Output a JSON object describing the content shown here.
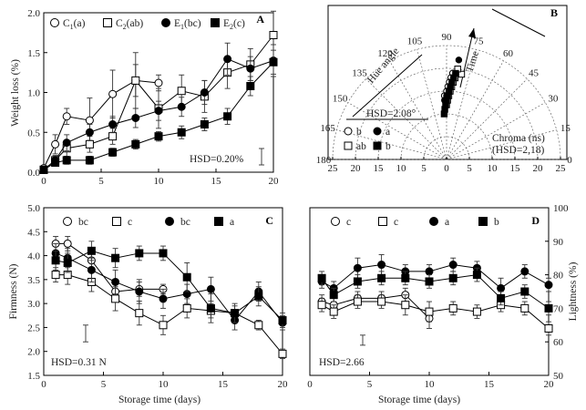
{
  "colors": {
    "axis": "#000000",
    "open": "#ffffff",
    "filled": "#000000"
  },
  "chart_data": [
    {
      "id": "A",
      "type": "line",
      "panel_label": "A",
      "ylabel": "Weight loss (%)",
      "xlabel": "",
      "xlim": [
        0,
        20
      ],
      "ylim": [
        0,
        2.0
      ],
      "xticks": [
        "0",
        "5",
        "10",
        "15",
        "20"
      ],
      "yticks": [
        "0.0",
        "0.5",
        "1.0",
        "1.5",
        "2.0"
      ],
      "annotation": "HSD=0.20%",
      "series": [
        {
          "name": "C",
          "sub": "1",
          "suffix": "(a)",
          "marker": "circle",
          "fill": "open",
          "x": [
            0,
            1,
            2,
            4,
            6,
            8,
            10
          ],
          "y": [
            0.05,
            0.35,
            0.7,
            0.65,
            0.98,
            1.15,
            1.12
          ],
          "err": [
            0.02,
            0.12,
            0.1,
            0.28,
            0.3,
            0.2,
            0.1
          ]
        },
        {
          "name": "C",
          "sub": "2",
          "suffix": "(ab)",
          "marker": "square",
          "fill": "open",
          "x": [
            0,
            1,
            2,
            4,
            6,
            8,
            10,
            12,
            14,
            16,
            18,
            20
          ],
          "y": [
            0.03,
            0.15,
            0.3,
            0.35,
            0.45,
            1.15,
            0.8,
            1.02,
            0.95,
            1.25,
            1.35,
            1.72
          ],
          "err": [
            0.02,
            0.06,
            0.1,
            0.1,
            0.1,
            0.35,
            0.25,
            0.2,
            0.2,
            0.2,
            0.2,
            0.3
          ]
        },
        {
          "name": "E",
          "sub": "1",
          "suffix": "(bc)",
          "marker": "circle",
          "fill": "filled",
          "x": [
            0,
            1,
            2,
            4,
            6,
            8,
            10,
            12,
            14,
            16,
            18,
            20
          ],
          "y": [
            0.03,
            0.15,
            0.37,
            0.5,
            0.6,
            0.68,
            0.77,
            0.82,
            1.0,
            1.42,
            1.3,
            1.4
          ],
          "err": [
            0.02,
            0.05,
            0.1,
            0.1,
            0.1,
            0.12,
            0.12,
            0.12,
            0.15,
            0.2,
            0.15,
            0.2
          ]
        },
        {
          "name": "E",
          "sub": "2",
          "suffix": "(c)",
          "marker": "square",
          "fill": "filled",
          "x": [
            0,
            1,
            2,
            4,
            6,
            8,
            10,
            12,
            14,
            16,
            18,
            20
          ],
          "y": [
            0.03,
            0.12,
            0.15,
            0.15,
            0.25,
            0.35,
            0.45,
            0.5,
            0.6,
            0.7,
            1.08,
            1.38
          ],
          "err": [
            0.02,
            0.03,
            0.05,
            0.05,
            0.05,
            0.06,
            0.06,
            0.08,
            0.08,
            0.1,
            0.12,
            0.15
          ]
        }
      ]
    },
    {
      "id": "B",
      "type": "polar-scatter",
      "panel_label": "B",
      "angle_ticks": [
        "180",
        "165",
        "150",
        "135",
        "120",
        "105",
        "90",
        "75",
        "60",
        "45",
        "30",
        "15",
        "0"
      ],
      "radial_ticks": [
        "25",
        "20",
        "15",
        "10",
        "5",
        "0",
        "5",
        "10",
        "15",
        "20",
        "25"
      ],
      "rmax": 25,
      "hue_label": "Hue angle",
      "time_label": "Time",
      "chroma_label": "Chroma (ns)",
      "chroma_hsd": "(HSD=2,18)",
      "hue_hsd": "HSD=2.08°",
      "legend": [
        {
          "marker": "circle",
          "fill": "open",
          "label": "b"
        },
        {
          "marker": "circle",
          "fill": "filled",
          "label": "a"
        },
        {
          "marker": "square",
          "fill": "open",
          "label": "ab"
        },
        {
          "marker": "square",
          "fill": "filled",
          "label": "b"
        }
      ],
      "points": [
        {
          "marker": "circle",
          "fill": "open",
          "hue": [
            92,
            90,
            89,
            88,
            87,
            86,
            85
          ],
          "chroma": [
            14,
            15,
            16,
            17,
            18,
            19,
            17
          ]
        },
        {
          "marker": "circle",
          "fill": "filled",
          "hue": [
            92,
            90,
            88,
            87,
            86,
            85,
            84,
            83
          ],
          "chroma": [
            13,
            14,
            15,
            16,
            17,
            18,
            19,
            22
          ]
        },
        {
          "marker": "square",
          "fill": "open",
          "hue": [
            90,
            89,
            88,
            87,
            86,
            85,
            84,
            80,
            83
          ],
          "chroma": [
            12,
            13,
            14,
            15,
            16,
            17,
            18,
            19,
            20
          ]
        },
        {
          "marker": "square",
          "fill": "filled",
          "hue": [
            93,
            92,
            91,
            90,
            89,
            88,
            87,
            86,
            85,
            84
          ],
          "chroma": [
            10,
            11,
            12,
            13,
            14,
            15,
            16,
            17,
            18,
            19
          ]
        }
      ]
    },
    {
      "id": "C",
      "type": "line",
      "panel_label": "C",
      "ylabel": "Firmness (N)",
      "xlabel": "Storage time (days)",
      "xlim": [
        0,
        20
      ],
      "ylim": [
        1.5,
        5.0
      ],
      "xticks": [
        "0",
        "5",
        "10",
        "15",
        "20"
      ],
      "yticks": [
        "1.5",
        "2.0",
        "2.5",
        "3.0",
        "3.5",
        "4.0",
        "4.5",
        "5.0"
      ],
      "annotation": "HSD=0.31 N",
      "legend": [
        "bc",
        "c",
        "bc",
        "a"
      ],
      "series": [
        {
          "marker": "circle",
          "fill": "open",
          "x": [
            1,
            2,
            4,
            6,
            8,
            10
          ],
          "y": [
            4.25,
            4.25,
            3.9,
            3.25,
            3.3,
            3.3
          ],
          "err": [
            0.15,
            0.15,
            0.2,
            0.2,
            0.15,
            0.1
          ]
        },
        {
          "marker": "square",
          "fill": "open",
          "x": [
            1,
            2,
            4,
            6,
            8,
            10,
            12,
            14,
            16,
            18,
            20
          ],
          "y": [
            3.6,
            3.6,
            3.45,
            3.1,
            2.8,
            2.55,
            2.9,
            2.85,
            2.8,
            2.55,
            1.95
          ],
          "err": [
            0.15,
            0.2,
            0.2,
            0.25,
            0.25,
            0.2,
            0.2,
            0.15,
            0.15,
            0.1,
            0.1
          ]
        },
        {
          "marker": "circle",
          "fill": "filled",
          "x": [
            1,
            2,
            4,
            6,
            8,
            10,
            12,
            14,
            16,
            18,
            20
          ],
          "y": [
            4.05,
            3.95,
            3.7,
            3.45,
            3.25,
            3.1,
            3.2,
            3.3,
            2.65,
            3.25,
            2.6
          ],
          "err": [
            0.2,
            0.2,
            0.25,
            0.25,
            0.25,
            0.2,
            0.2,
            0.25,
            0.2,
            0.2,
            0.15
          ]
        },
        {
          "marker": "square",
          "fill": "filled",
          "x": [
            1,
            2,
            4,
            6,
            8,
            10,
            12,
            14,
            16,
            18,
            20
          ],
          "y": [
            3.9,
            3.85,
            4.1,
            3.95,
            4.05,
            4.05,
            3.55,
            2.9,
            2.8,
            3.15,
            2.65
          ],
          "err": [
            0.2,
            0.2,
            0.2,
            0.2,
            0.15,
            0.15,
            0.3,
            0.3,
            0.2,
            0.2,
            0.15
          ]
        }
      ],
      "hsd_bar": [
        2.2,
        2.55
      ]
    },
    {
      "id": "D",
      "type": "line",
      "panel_label": "D",
      "ylabel": "Lightness (%)",
      "xlabel": "Storage time (days)",
      "xlim": [
        0,
        20
      ],
      "ylim": [
        50,
        100
      ],
      "xticks": [
        "0",
        "5",
        "10",
        "15",
        "20"
      ],
      "yticks": [
        "50",
        "60",
        "70",
        "80",
        "90",
        "100"
      ],
      "annotation": "HSD=2.66",
      "legend": [
        "c",
        "c",
        "a",
        "b"
      ],
      "series": [
        {
          "marker": "circle",
          "fill": "open",
          "x": [
            1,
            2,
            4,
            6,
            8,
            10
          ],
          "y": [
            72,
            71,
            73,
            73,
            74,
            67
          ],
          "err": [
            2,
            2,
            2,
            2,
            2,
            3
          ]
        },
        {
          "marker": "square",
          "fill": "open",
          "x": [
            1,
            2,
            4,
            6,
            8,
            10,
            12,
            14,
            16,
            18,
            20
          ],
          "y": [
            71,
            69,
            72,
            72,
            71,
            69,
            70,
            69,
            71,
            70,
            64
          ],
          "err": [
            2,
            2,
            2,
            2,
            3,
            3,
            2,
            2,
            2,
            2,
            2
          ]
        },
        {
          "marker": "circle",
          "fill": "filled",
          "x": [
            1,
            2,
            4,
            6,
            8,
            10,
            12,
            14,
            16,
            18,
            20
          ],
          "y": [
            78,
            76,
            82,
            83,
            81,
            81,
            83,
            82,
            76,
            81,
            77
          ],
          "err": [
            2,
            2,
            3,
            3,
            2,
            2,
            2,
            2,
            3,
            2,
            2
          ]
        },
        {
          "marker": "square",
          "fill": "filled",
          "x": [
            1,
            2,
            4,
            6,
            8,
            10,
            12,
            14,
            16,
            18,
            20
          ],
          "y": [
            79,
            74,
            78,
            79,
            79,
            78,
            79,
            80,
            73,
            75,
            70
          ],
          "err": [
            2,
            2,
            2,
            2,
            2,
            2,
            2,
            2,
            2,
            2,
            2
          ]
        }
      ],
      "hsd_bar": [
        59,
        62
      ]
    }
  ]
}
